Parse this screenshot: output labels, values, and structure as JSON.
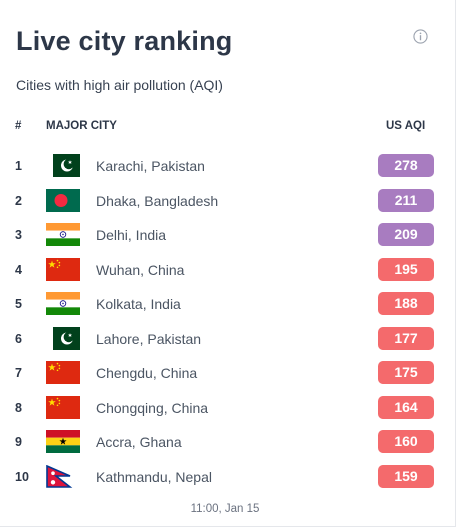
{
  "widget": {
    "title": "Live city ranking",
    "subtitle": "Cities with high air pollution (AQI)",
    "timestamp": "11:00, Jan 15",
    "info_icon": "info-circle-icon"
  },
  "table": {
    "headers": {
      "rank": "#",
      "city": "MAJOR CITY",
      "aqi": "US AQI"
    },
    "rows": [
      {
        "rank": "1",
        "city": "Karachi, Pakistan",
        "aqi": "278",
        "flag": "pakistan",
        "level": "very-unhealthy"
      },
      {
        "rank": "2",
        "city": "Dhaka, Bangladesh",
        "aqi": "211",
        "flag": "bangladesh",
        "level": "very-unhealthy"
      },
      {
        "rank": "3",
        "city": "Delhi, India",
        "aqi": "209",
        "flag": "india",
        "level": "very-unhealthy"
      },
      {
        "rank": "4",
        "city": "Wuhan, China",
        "aqi": "195",
        "flag": "china",
        "level": "unhealthy"
      },
      {
        "rank": "5",
        "city": "Kolkata, India",
        "aqi": "188",
        "flag": "india",
        "level": "unhealthy"
      },
      {
        "rank": "6",
        "city": "Lahore, Pakistan",
        "aqi": "177",
        "flag": "pakistan",
        "level": "unhealthy"
      },
      {
        "rank": "7",
        "city": "Chengdu, China",
        "aqi": "175",
        "flag": "china",
        "level": "unhealthy"
      },
      {
        "rank": "8",
        "city": "Chongqing, China",
        "aqi": "164",
        "flag": "china",
        "level": "unhealthy"
      },
      {
        "rank": "9",
        "city": "Accra, Ghana",
        "aqi": "160",
        "flag": "ghana",
        "level": "unhealthy"
      },
      {
        "rank": "10",
        "city": "Kathmandu, Nepal",
        "aqi": "159",
        "flag": "nepal",
        "level": "unhealthy"
      }
    ]
  },
  "colors": {
    "very-unhealthy": "#a87cc0",
    "unhealthy": "#f46a6c"
  }
}
